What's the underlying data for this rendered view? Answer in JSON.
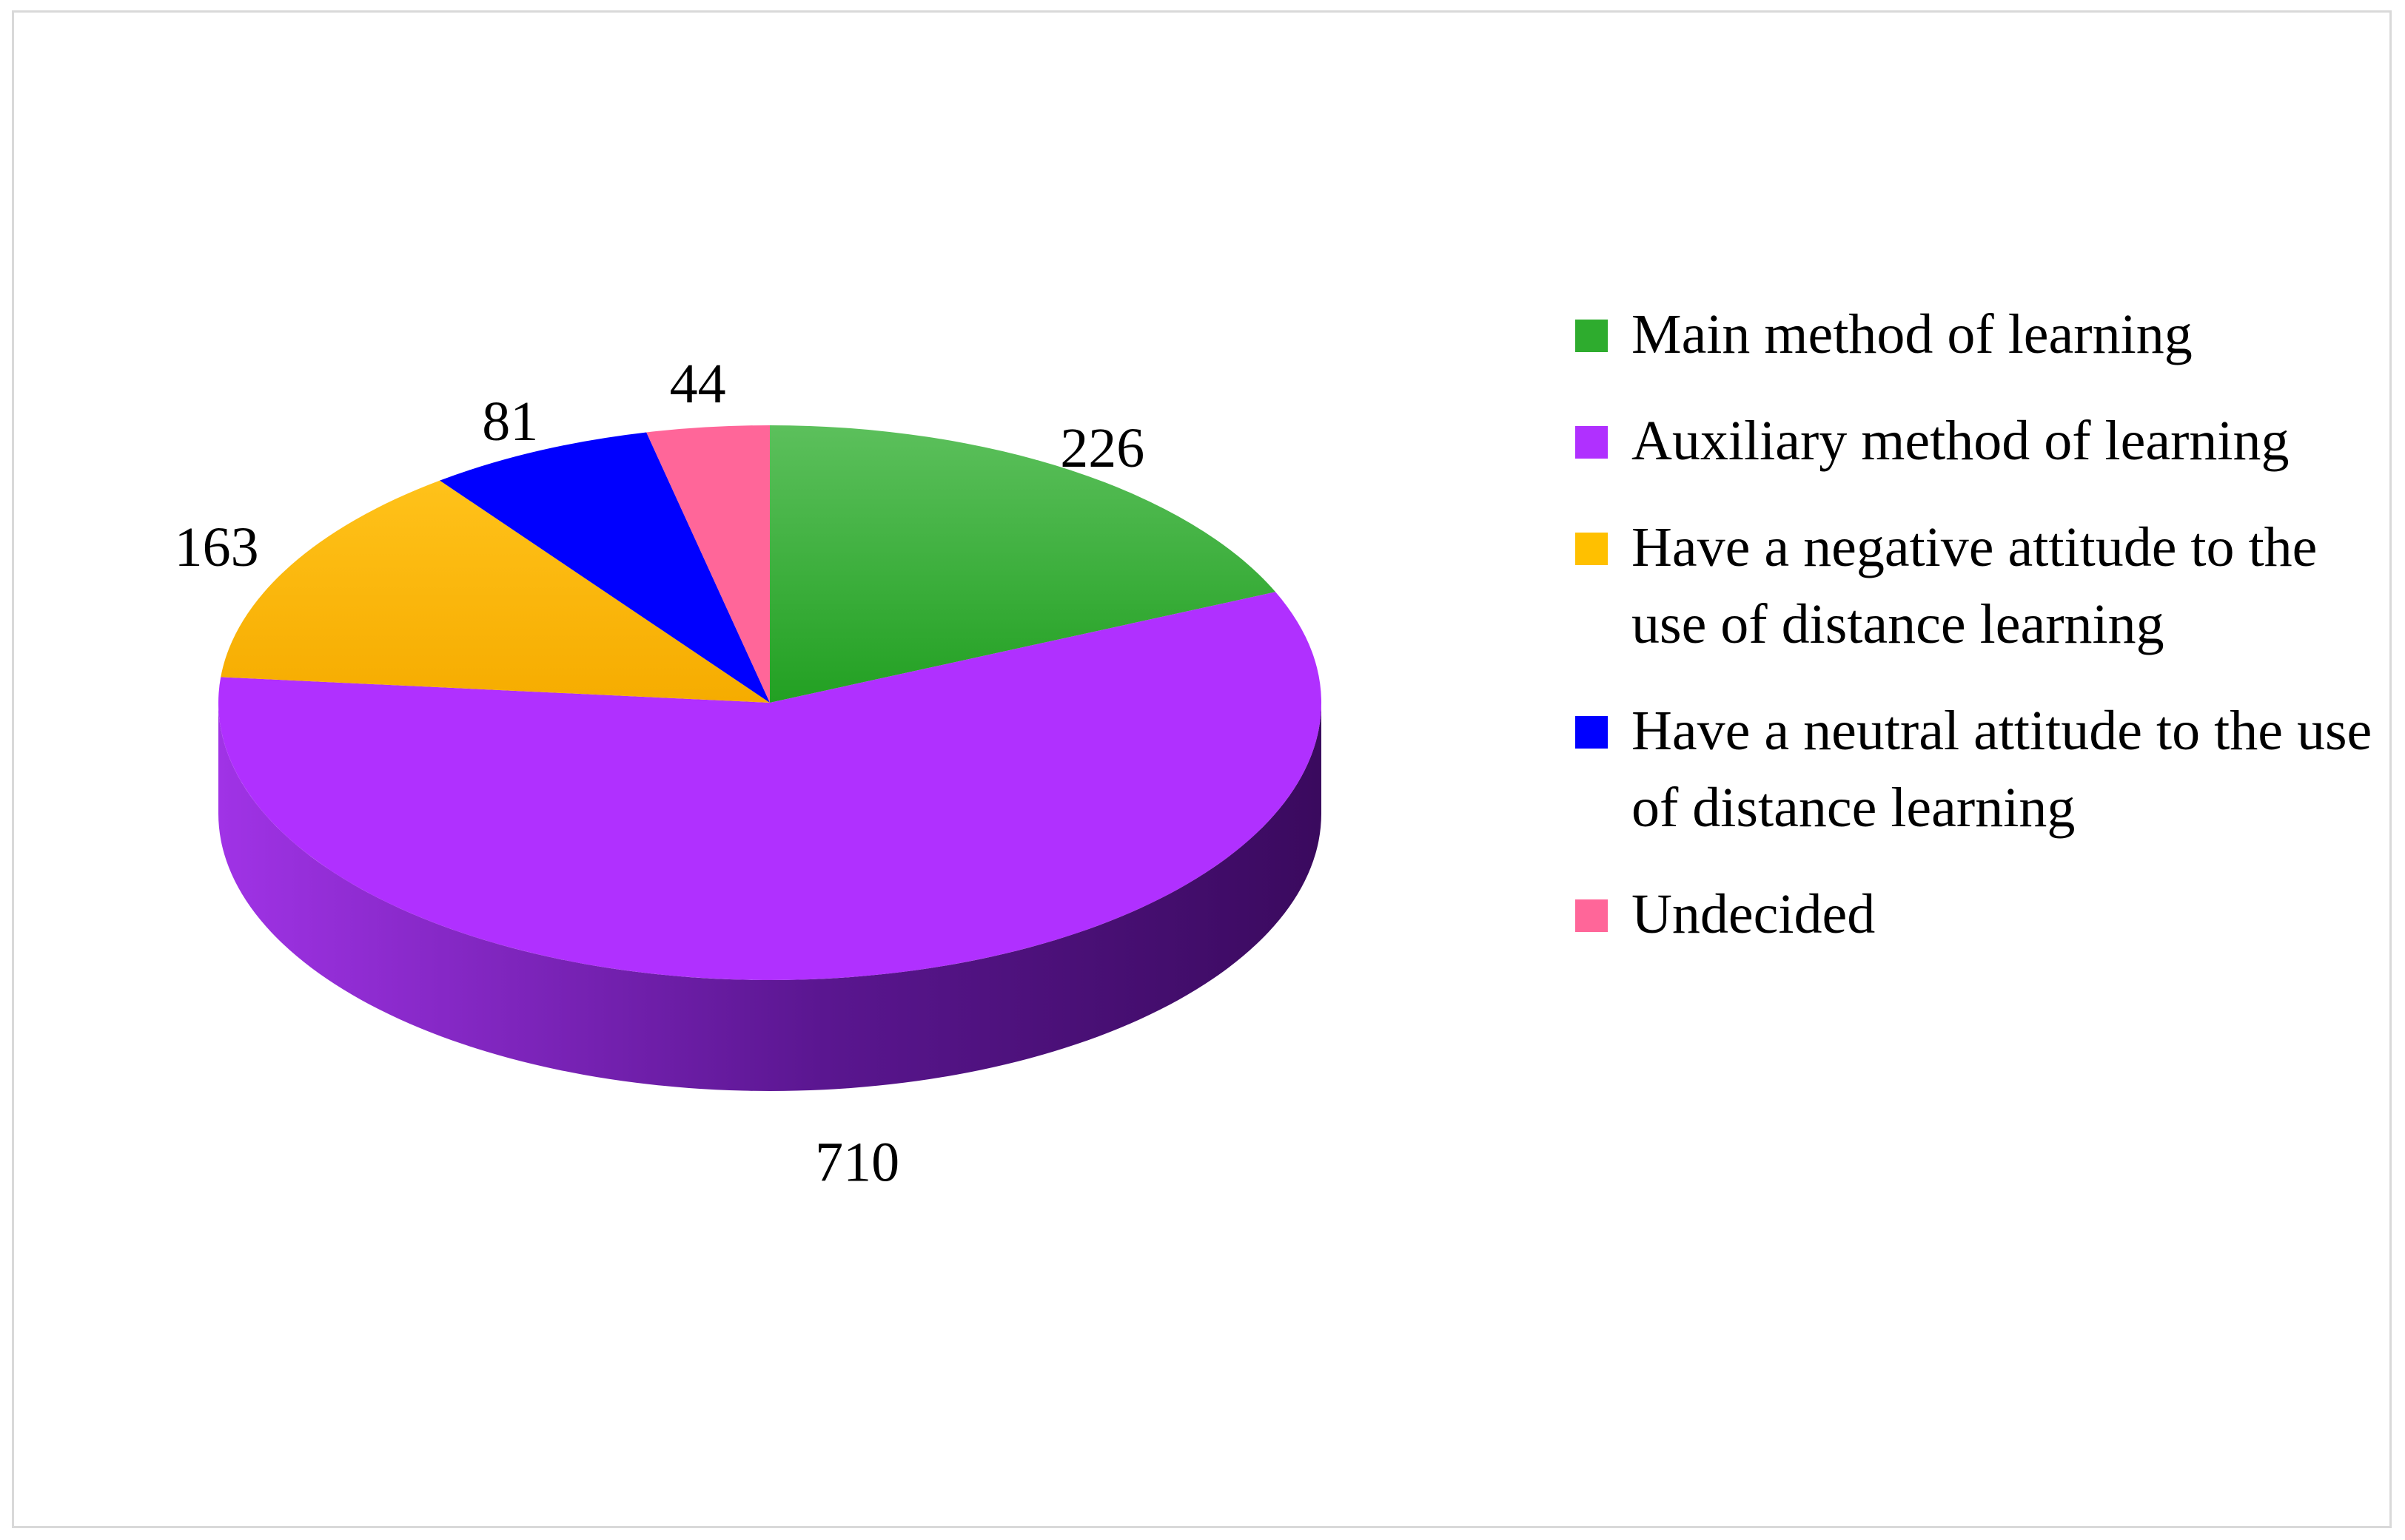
{
  "chart_data": {
    "type": "pie",
    "style": "3d",
    "title": "",
    "categories": [
      "Main method of learning",
      "Auxiliary method of learning",
      "Have a negative attitude to the use of distance learning",
      "Have a neutral attitude to the use of distance learning",
      "Undecided"
    ],
    "values": [
      226,
      710,
      163,
      81,
      44
    ],
    "colors": [
      "#2eac2e",
      "#b030ff",
      "#ffc000",
      "#0000ff",
      "#ff6699"
    ],
    "legend_position": "right",
    "labels": [
      "226",
      "710",
      "163",
      "81",
      "44"
    ]
  }
}
